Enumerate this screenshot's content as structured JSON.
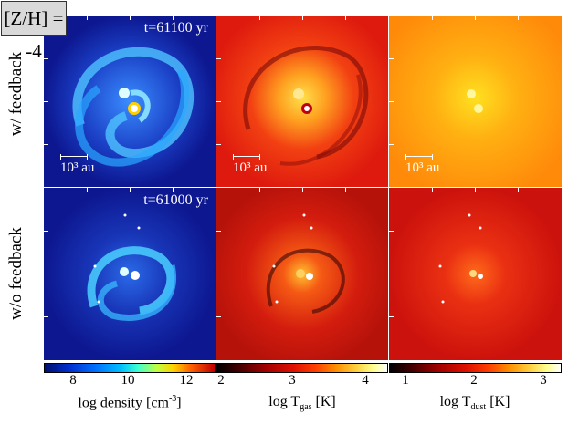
{
  "metallicity_label": "[Z/H] = -4",
  "row_labels": [
    "w/ feedback",
    "w/o feedback"
  ],
  "panels": {
    "timestamps": [
      "t=61100 yr",
      "t=61000 yr"
    ],
    "scale_bar_label": "10³ au"
  },
  "colorbars": [
    {
      "name": "density",
      "label_prefix": "log density [cm",
      "label_sup": "-3",
      "label_suffix": "]",
      "ticks": [
        "8",
        "10",
        "12"
      ]
    },
    {
      "name": "tgas",
      "label_prefix": "log T",
      "label_sub": "gas",
      "label_suffix": " [K]",
      "ticks": [
        "2",
        "3",
        "4"
      ]
    },
    {
      "name": "tdust",
      "label_prefix": "log T",
      "label_sub": "dust",
      "label_suffix": " [K]",
      "ticks": [
        "1",
        "2",
        "3"
      ]
    }
  ],
  "colors": {
    "density_background": "#0d1790",
    "tgas_background": "#e01810",
    "tdust_feedback_background": "#ff8a0a",
    "tdust_nofeedback_background": "#d3130c"
  }
}
